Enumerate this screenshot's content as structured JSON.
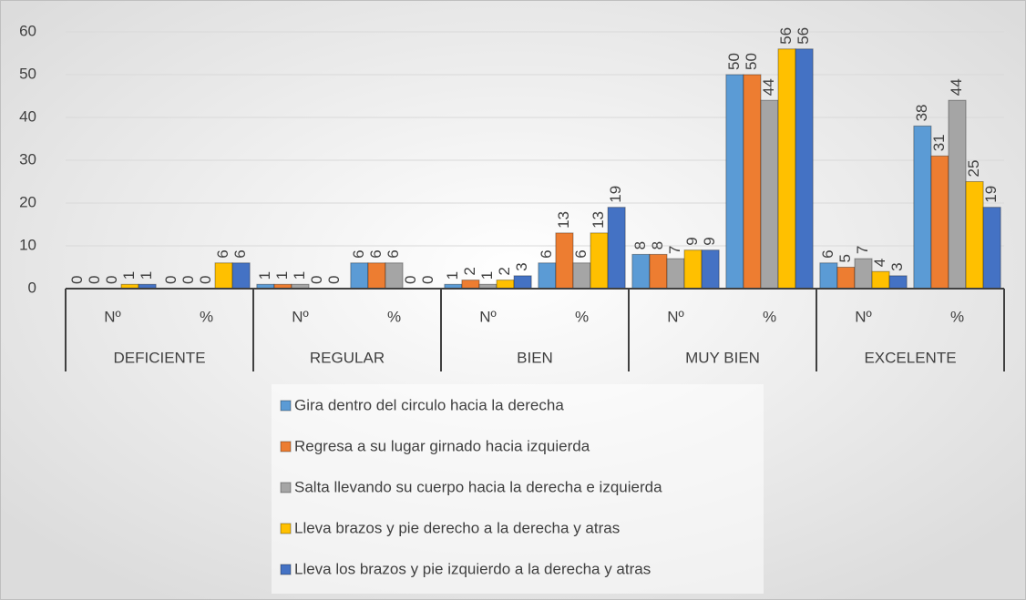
{
  "chart_data": {
    "type": "bar",
    "categories": [
      "Nº",
      "%",
      "Nº",
      "%",
      "Nº",
      "%",
      "Nº",
      "%",
      "Nº",
      "%"
    ],
    "groups": [
      "DEFICIENTE",
      "REGULAR",
      "BIEN",
      "MUY BIEN",
      "EXCELENTE"
    ],
    "series": [
      {
        "name": "Gira dentro del circulo hacia la derecha",
        "color": "#5b9bd5",
        "values": [
          0,
          0,
          1,
          6,
          1,
          6,
          8,
          50,
          6,
          38
        ]
      },
      {
        "name": "Regresa a su lugar girnado hacia izquierda",
        "color": "#ed7d31",
        "values": [
          0,
          0,
          1,
          6,
          2,
          13,
          8,
          50,
          5,
          31
        ]
      },
      {
        "name": "Salta llevando su cuerpo hacia la derecha e izquierda",
        "color": "#a5a5a5",
        "values": [
          0,
          0,
          1,
          6,
          1,
          6,
          7,
          44,
          7,
          44
        ]
      },
      {
        "name": "Lleva brazos y pie derecho a la derecha y atras",
        "color": "#ffc000",
        "values": [
          1,
          6,
          0,
          0,
          2,
          13,
          9,
          56,
          4,
          25
        ]
      },
      {
        "name": "Lleva los brazos y pie izquierdo a la derecha y atras",
        "color": "#4472c4",
        "values": [
          1,
          6,
          0,
          0,
          3,
          19,
          9,
          56,
          3,
          19
        ]
      }
    ],
    "ylim": [
      0,
      60
    ],
    "yticks": [
      0,
      10,
      20,
      30,
      40,
      50,
      60
    ],
    "grid": true,
    "legend": "bottom"
  }
}
